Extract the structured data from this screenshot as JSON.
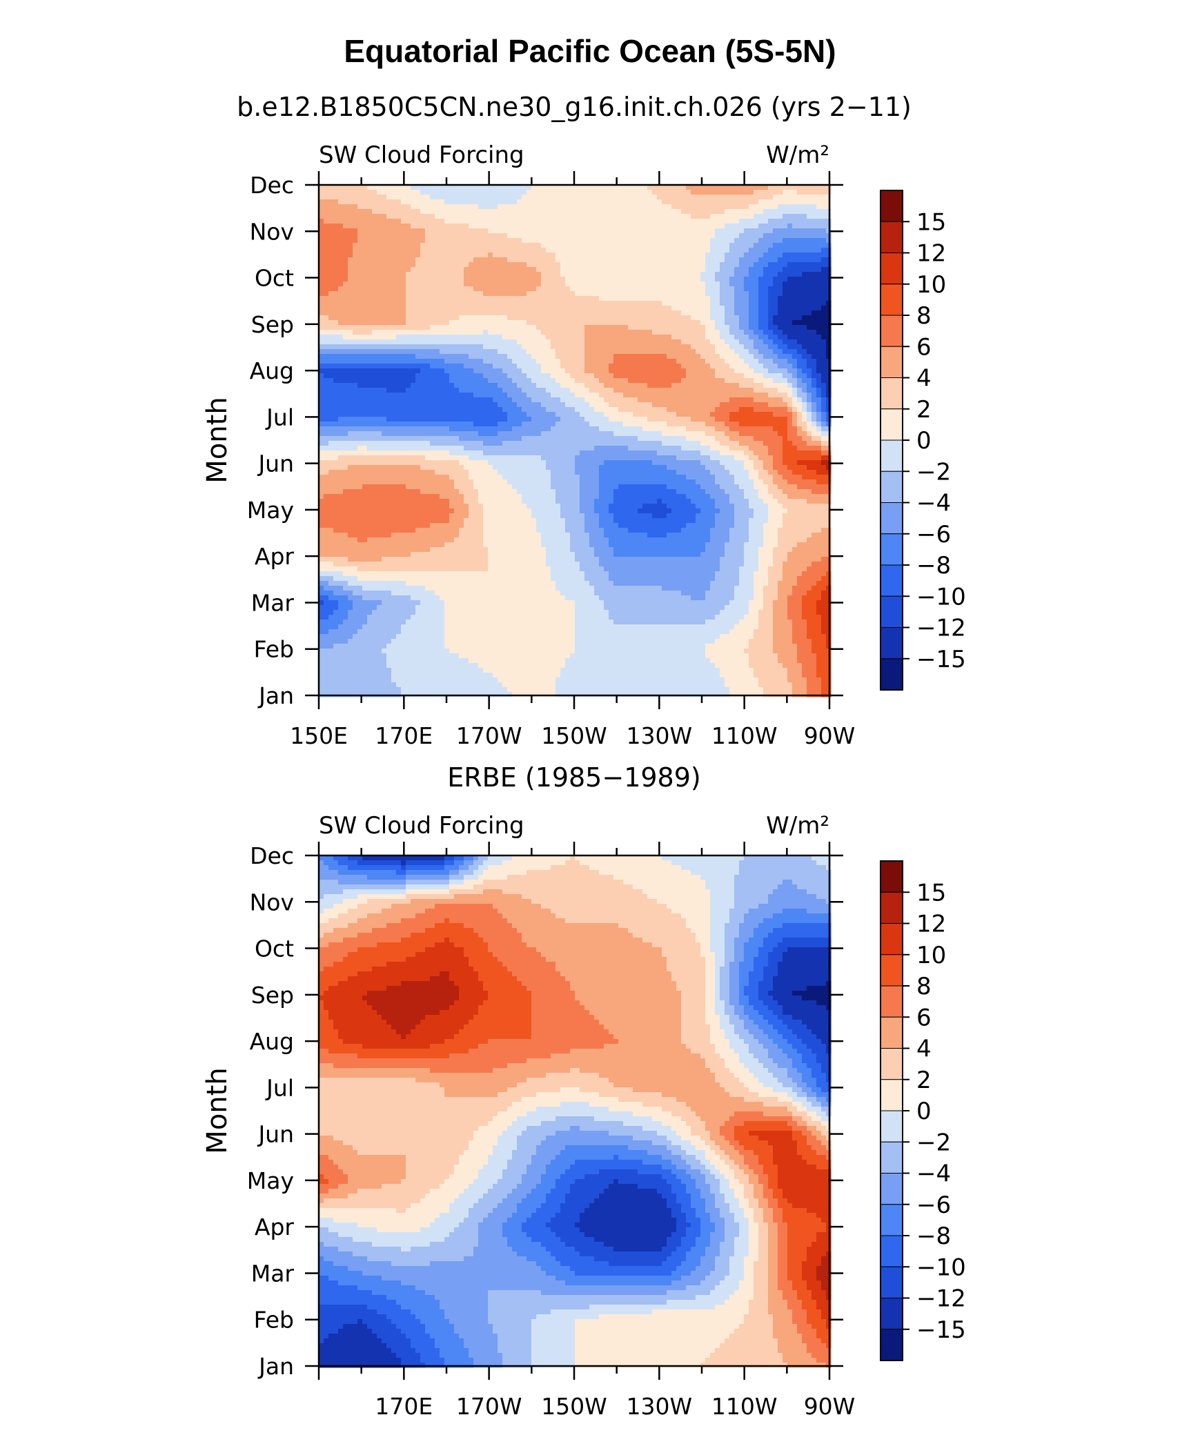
{
  "figure": {
    "title": "Equatorial Pacific Ocean (5S-5N)"
  },
  "colorbar": {
    "levels": [
      -15,
      -12,
      -10,
      -8,
      -6,
      -4,
      -2,
      0,
      2,
      4,
      6,
      8,
      10,
      12,
      15
    ],
    "labels": [
      "15",
      "12",
      "10",
      "8",
      "6",
      "4",
      "2",
      "0",
      "−2",
      "−4",
      "−6",
      "−8",
      "−10",
      "−12",
      "−15"
    ],
    "colors": [
      "#0a1a7a",
      "#1433b0",
      "#1f4fd8",
      "#2f67ef",
      "#4d86f5",
      "#779ff3",
      "#a3bff3",
      "#d1e2f7",
      "#fdebd7",
      "#fccfb2",
      "#f8a67c",
      "#f5794d",
      "#f0551f",
      "#da3610",
      "#b6220d",
      "#7a0d07"
    ]
  },
  "chart_data": [
    {
      "type": "heatmap",
      "subtitle": "b.e12.B1850C5CN.ne30_g16.init.ch.026 (yrs 2−11)",
      "left_label": "SW Cloud Forcing",
      "right_label": "W/m²",
      "ylabel": "Month",
      "xlabel": "",
      "x_ticks": [
        "150E",
        "170E",
        "170W",
        "150W",
        "130W",
        "110W",
        "90W"
      ],
      "y_ticks": [
        "Jan",
        "Feb",
        "Mar",
        "Apr",
        "May",
        "Jun",
        "Jul",
        "Aug",
        "Sep",
        "Oct",
        "Nov",
        "Dec"
      ],
      "x_columns": [
        "150E",
        "160E",
        "170E",
        "180",
        "170W",
        "160W",
        "150W",
        "140W",
        "130W",
        "120W",
        "110W",
        "100W",
        "90W"
      ],
      "values": [
        [
          -3,
          -3,
          -2,
          -2,
          -1,
          1,
          -1,
          -2,
          -1,
          -2,
          1,
          3,
          9
        ],
        [
          -4,
          -3,
          -1,
          0,
          1,
          1,
          0,
          -1,
          -1,
          0,
          2,
          5,
          10
        ],
        [
          -11,
          -5,
          -3,
          0,
          2,
          1,
          0,
          -3,
          -3,
          -4,
          -1,
          6,
          12
        ],
        [
          4,
          5,
          4,
          3,
          2,
          1,
          -2,
          -6,
          -6,
          -6,
          -2,
          4,
          6
        ],
        [
          7,
          8,
          8,
          7,
          1,
          0,
          -3,
          -9,
          -11,
          -8,
          -3,
          2,
          3
        ],
        [
          3,
          4,
          4,
          3,
          0,
          -1,
          -4,
          -7,
          -6,
          -4,
          0,
          9,
          13
        ],
        [
          -9,
          -8,
          -9,
          -9,
          -10,
          -6,
          -3,
          1,
          3,
          5,
          10,
          8,
          -10
        ],
        [
          -10,
          -11,
          -11,
          -8,
          -5,
          -1,
          3,
          7,
          8,
          5,
          1,
          -4,
          -15
        ],
        [
          3,
          5,
          4,
          2,
          1,
          2,
          4,
          4,
          3,
          2,
          -5,
          -15,
          -16
        ],
        [
          8,
          5,
          4,
          3,
          6,
          5,
          1,
          0,
          1,
          0,
          -6,
          -12,
          -14
        ],
        [
          7,
          6,
          5,
          3,
          2,
          1,
          1,
          0,
          0,
          1,
          -2,
          -5,
          -4
        ],
        [
          3,
          2,
          0,
          -2,
          -2,
          0,
          1,
          0,
          3,
          5,
          6,
          3,
          4
        ]
      ]
    },
    {
      "type": "heatmap",
      "subtitle": "ERBE (1985−1989)",
      "left_label": "SW Cloud Forcing",
      "right_label": "W/m²",
      "ylabel": "Month",
      "xlabel": "",
      "x_ticks": [
        "170E",
        "170W",
        "150W",
        "130W",
        "110W",
        "90W"
      ],
      "y_ticks": [
        "Jan",
        "Feb",
        "Mar",
        "Apr",
        "May",
        "Jun",
        "Jul",
        "Aug",
        "Sep",
        "Oct",
        "Nov",
        "Dec"
      ],
      "x_columns": [
        "150E",
        "160E",
        "170E",
        "180",
        "170W",
        "160W",
        "150W",
        "140W",
        "130W",
        "120W",
        "110W",
        "100W",
        "90W"
      ],
      "values": [
        [
          -13,
          -15,
          -12,
          -8,
          -5,
          -2,
          0,
          2,
          2,
          2,
          3,
          4,
          6
        ],
        [
          -11,
          -12,
          -9,
          -6,
          -4,
          -2,
          0,
          1,
          2,
          1,
          2,
          5,
          11
        ],
        [
          -8,
          -6,
          -5,
          -5,
          -4,
          -5,
          -8,
          -9,
          -9,
          -5,
          0,
          8,
          14
        ],
        [
          -2,
          0,
          1,
          -1,
          -5,
          -9,
          -12,
          -15,
          -15,
          -8,
          -1,
          8,
          10
        ],
        [
          9,
          5,
          4,
          2,
          -1,
          -5,
          -10,
          -12,
          -11,
          -5,
          3,
          12,
          12
        ],
        [
          4,
          3,
          4,
          4,
          1,
          -3,
          -5,
          -4,
          -2,
          3,
          10,
          11,
          3
        ],
        [
          3,
          2,
          2,
          4,
          5,
          3,
          2,
          4,
          5,
          6,
          2,
          -2,
          -10
        ],
        [
          9,
          11,
          12,
          10,
          8,
          8,
          7,
          6,
          5,
          3,
          -2,
          -8,
          -13
        ],
        [
          10,
          12,
          13,
          13,
          10,
          8,
          6,
          5,
          5,
          3,
          -8,
          -15,
          -16
        ],
        [
          6,
          8,
          9,
          11,
          8,
          6,
          5,
          5,
          4,
          2,
          -6,
          -12,
          -12
        ],
        [
          -2,
          2,
          4,
          6,
          6,
          4,
          3,
          3,
          2,
          1,
          -3,
          -5,
          -4
        ],
        [
          -6,
          -13,
          -15,
          -13,
          -2,
          1,
          2,
          1,
          0,
          -1,
          -2,
          -3,
          -1
        ]
      ]
    }
  ]
}
